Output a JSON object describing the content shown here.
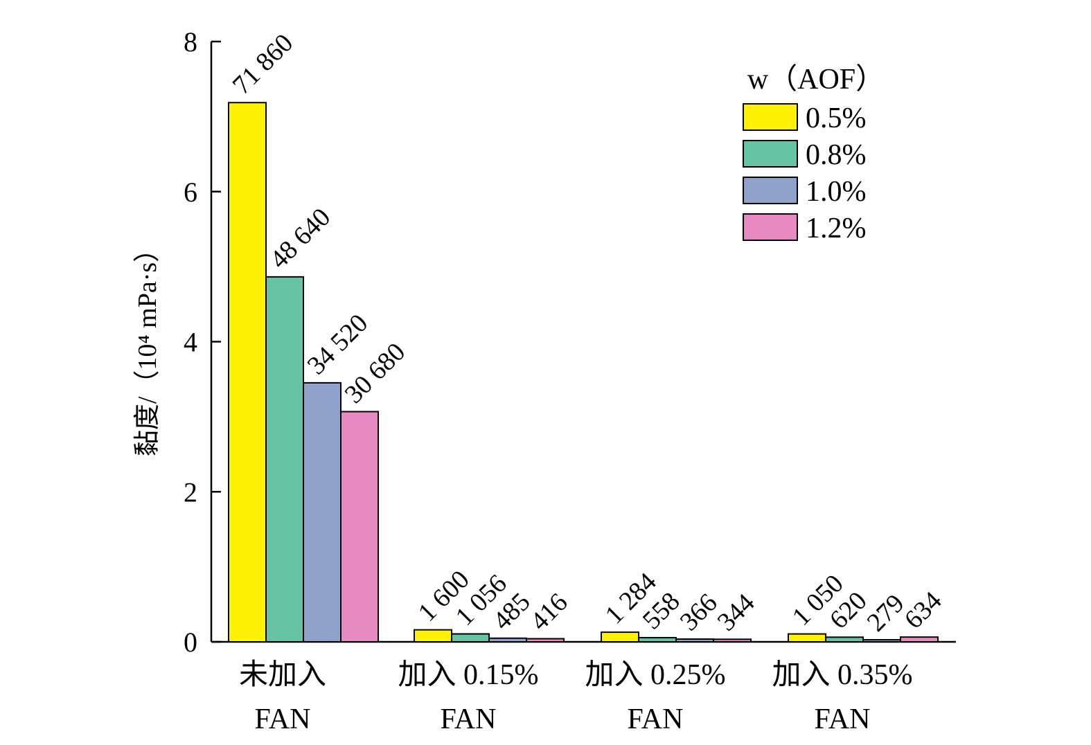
{
  "chart_data": {
    "type": "bar",
    "categories": [
      [
        "未加入",
        "FAN"
      ],
      [
        "加入 0.15%",
        "FAN"
      ],
      [
        "加入 0.25%",
        "FAN"
      ],
      [
        "加入 0.35%",
        "FAN"
      ]
    ],
    "series": [
      {
        "name": "0.5%",
        "color": "#FFF200",
        "values": [
          71860,
          1600,
          1284,
          1050
        ],
        "labels": [
          "71 860",
          "1 600",
          "1 284",
          "1 050"
        ]
      },
      {
        "name": "0.8%",
        "color": "#66C4A4",
        "values": [
          48640,
          1056,
          558,
          620
        ],
        "labels": [
          "48 640",
          "1 056",
          "558",
          "620"
        ]
      },
      {
        "name": "1.0%",
        "color": "#8FA2CC",
        "values": [
          34520,
          485,
          366,
          279
        ],
        "labels": [
          "34 520",
          "485",
          "366",
          "279"
        ]
      },
      {
        "name": "1.2%",
        "color": "#E78AC3",
        "values": [
          30680,
          416,
          344,
          634
        ],
        "labels": [
          "30 680",
          "416",
          "344",
          "634"
        ]
      }
    ],
    "value_scale": 10000,
    "ylim": [
      0,
      8
    ],
    "yticks": [
      0,
      2,
      4,
      6,
      8
    ],
    "ylabel": "黏度/（10⁴ mPa·s）",
    "xlabel": "",
    "title": "",
    "legend": {
      "title": "w（AOF）",
      "position": "top-right"
    },
    "grid": false
  }
}
